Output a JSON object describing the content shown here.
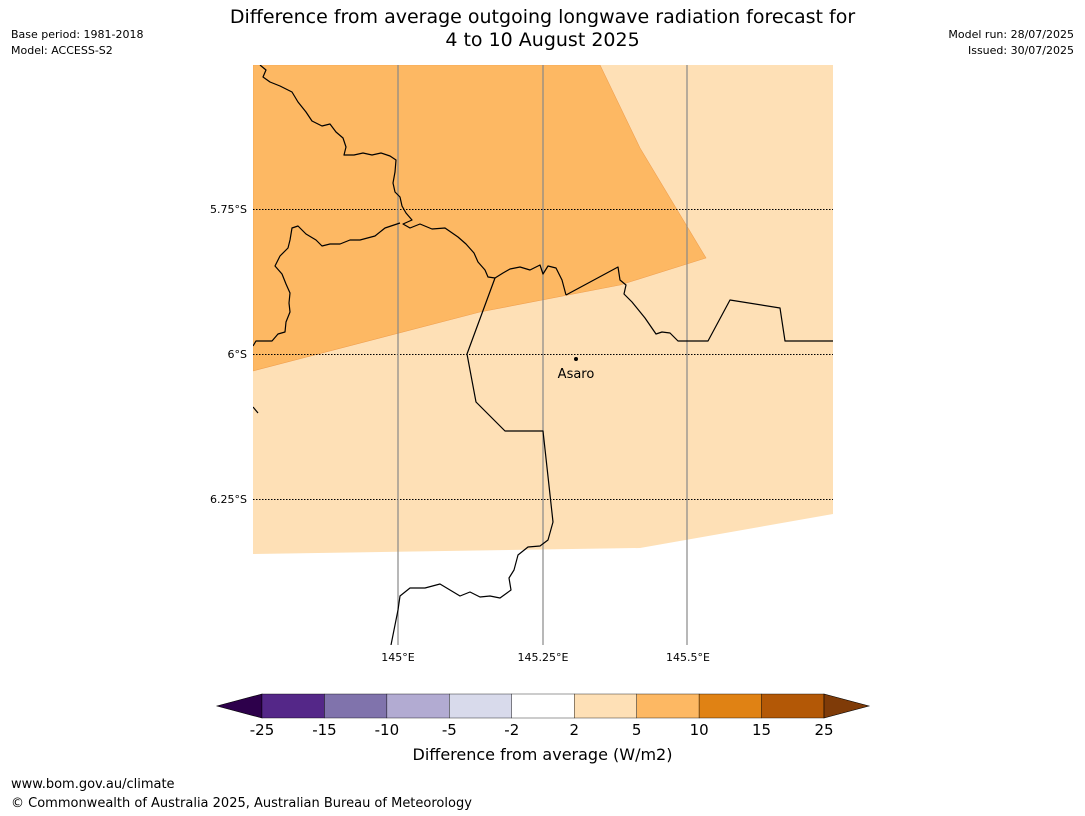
{
  "title": {
    "line1": "Difference from average outgoing longwave radiation forecast for",
    "line2": "4 to 10 August 2025"
  },
  "meta": {
    "base_period": "Base period: 1981-2018",
    "model": "Model: ACCESS-S2",
    "model_run": "Model run: 28/07/2025",
    "issued": "Issued: 30/07/2025"
  },
  "map": {
    "lat_labels": [
      "5.75°S",
      "6°S",
      "6.25°S"
    ],
    "lon_labels": [
      "145°E",
      "145.25°E",
      "145.5°E"
    ],
    "place": {
      "name": "Asaro"
    }
  },
  "colorbar": {
    "title": "Difference from average (W/m2)",
    "ticks": [
      "-25",
      "-15",
      "-10",
      "-5",
      "-2",
      "2",
      "5",
      "10",
      "15",
      "25"
    ],
    "colors": [
      "#2d004b",
      "#542788",
      "#8073ac",
      "#b2abd2",
      "#d8daeb",
      "#ffffff",
      "#fee0b6",
      "#fdb863",
      "#e08214",
      "#b35806",
      "#7f3b08"
    ]
  },
  "footer": {
    "url": "www.bom.gov.au/climate",
    "copyright": "© Commonwealth of Australia 2025, Australian Bureau of Meteorology"
  }
}
